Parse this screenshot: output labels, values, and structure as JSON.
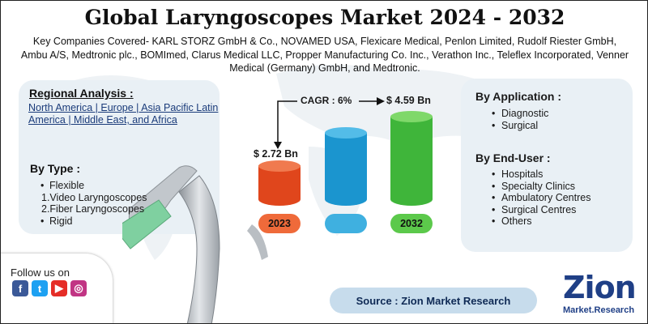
{
  "title": "Global Laryngoscopes Market 2024 - 2032",
  "subtitle": "Key Companies Covered- KARL STORZ GmbH & Co., NOVAMED USA, Flexicare Medical, Penlon Limited, Rudolf Riester GmbH, Ambu A/S, Medtronic plc., BOMImed, Clarus Medical LLC, Propper Manufacturing Co. Inc., Verathon Inc., Teleflex Incorporated, Venner Medical (Germany) GmbH, and Medtronic.",
  "regional": {
    "heading": "Regional Analysis :",
    "text": "North America | Europe | Asia Pacific Latin America | Middle East, and Africa"
  },
  "by_type": {
    "heading": "By Type :",
    "items": [
      "Flexible",
      "1.Video Laryngoscopes",
      "2.Fiber Laryngoscopes",
      "Rigid"
    ]
  },
  "by_application": {
    "heading": "By Application :",
    "items": [
      "Diagnostic",
      "Surgical"
    ]
  },
  "by_end_user": {
    "heading": "By End-User :",
    "items": [
      "Hospitals",
      "Specialty Clinics",
      "Ambulatory Centres",
      "Surgical Centres",
      "Others"
    ]
  },
  "market": {
    "cagr_label": "CAGR : 6%",
    "start_value": "$ 2.72 Bn",
    "end_value": "$ 4.59 Bn",
    "start_year": "2023",
    "end_year": "2032"
  },
  "follow": {
    "label": "Follow us on",
    "icons": [
      "facebook-icon",
      "twitter-icon",
      "youtube-icon",
      "instagram-icon"
    ]
  },
  "source": "Source : Zion Market Research",
  "logo": {
    "main": "Zion",
    "sub": "Market.Research"
  },
  "colors": {
    "red_bar": "#e0461c",
    "blue_bar": "#1b95cf",
    "green_bar": "#3fb53a",
    "panel": "#e9f0f5",
    "brand_blue": "#1f3f86"
  }
}
